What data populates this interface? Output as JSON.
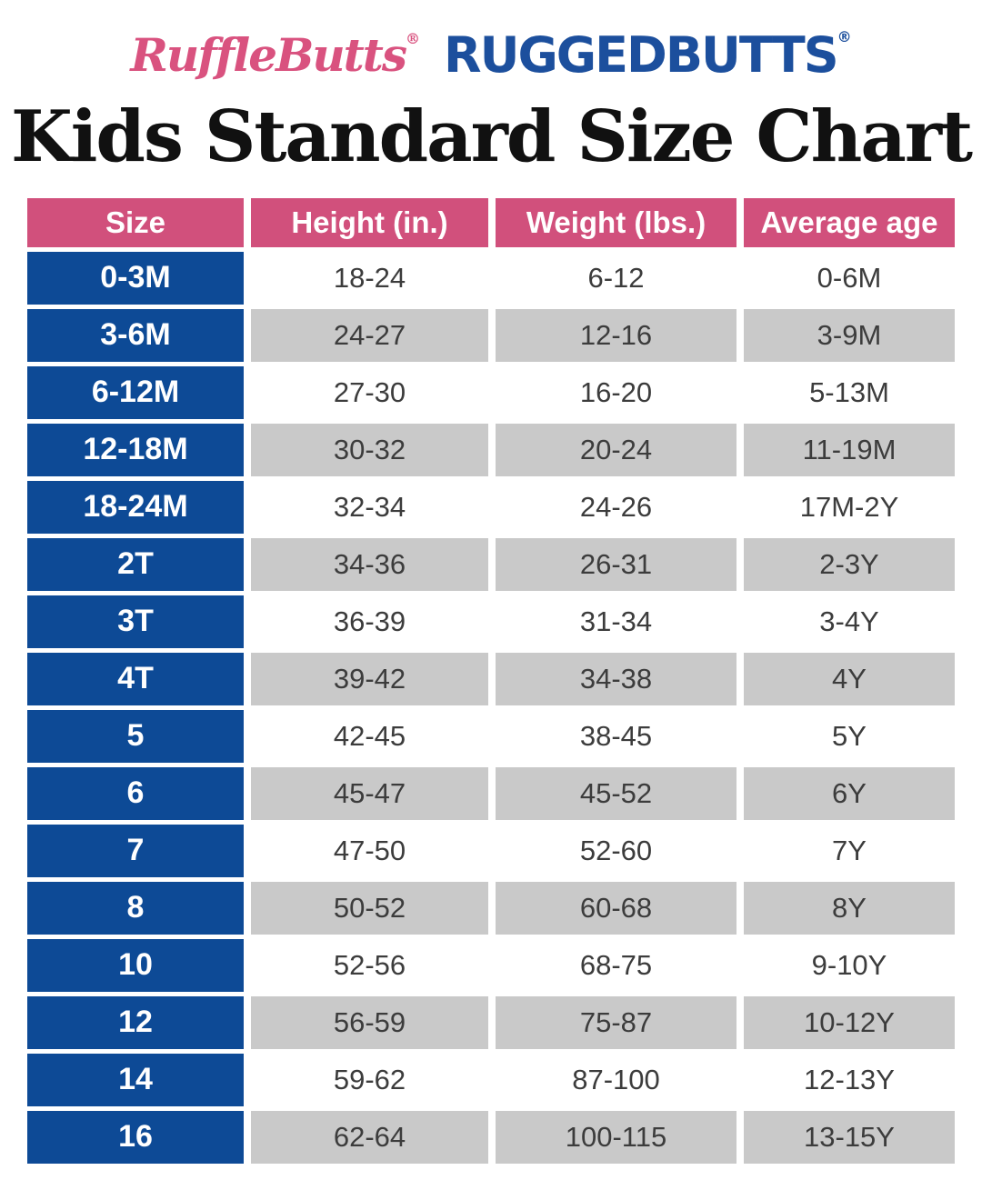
{
  "brand": {
    "rufflebutts": "RuffleButts",
    "rufflebutts_reg": "®",
    "ruggedbutts": "RUGGEDBUTTS",
    "ruggedbutts_reg": "®"
  },
  "title": "Kids Standard Size Chart",
  "colors": {
    "header_pink": "#D1507C",
    "size_blue": "#0D4A96",
    "row_gray": "#C9C9C9",
    "row_white": "#FFFFFF",
    "data_text": "#3C3C3C",
    "rufflebutts_pink": "#D9527F",
    "ruggedbutts_blue": "#1C4F9D",
    "title_black": "#111111"
  },
  "chart_data": {
    "type": "table",
    "title": "Kids Standard Size Chart",
    "columns": [
      "Size",
      "Height (in.)",
      "Weight (lbs.)",
      "Average age"
    ],
    "rows": [
      [
        "0-3M",
        "18-24",
        "6-12",
        "0-6M"
      ],
      [
        "3-6M",
        "24-27",
        "12-16",
        "3-9M"
      ],
      [
        "6-12M",
        "27-30",
        "16-20",
        "5-13M"
      ],
      [
        "12-18M",
        "30-32",
        "20-24",
        "11-19M"
      ],
      [
        "18-24M",
        "32-34",
        "24-26",
        "17M-2Y"
      ],
      [
        "2T",
        "34-36",
        "26-31",
        "2-3Y"
      ],
      [
        "3T",
        "36-39",
        "31-34",
        "3-4Y"
      ],
      [
        "4T",
        "39-42",
        "34-38",
        "4Y"
      ],
      [
        "5",
        "42-45",
        "38-45",
        "5Y"
      ],
      [
        "6",
        "45-47",
        "45-52",
        "6Y"
      ],
      [
        "7",
        "47-50",
        "52-60",
        "7Y"
      ],
      [
        "8",
        "50-52",
        "60-68",
        "8Y"
      ],
      [
        "10",
        "52-56",
        "68-75",
        "9-10Y"
      ],
      [
        "12",
        "56-59",
        "75-87",
        "10-12Y"
      ],
      [
        "14",
        "59-62",
        "87-100",
        "12-13Y"
      ],
      [
        "16",
        "62-64",
        "100-115",
        "13-15Y"
      ]
    ],
    "layout": {
      "size_column_style": "white bold text on blue",
      "header_style": "white bold text on pink",
      "data_row_shading": "alternating white and gray, starting white"
    }
  }
}
